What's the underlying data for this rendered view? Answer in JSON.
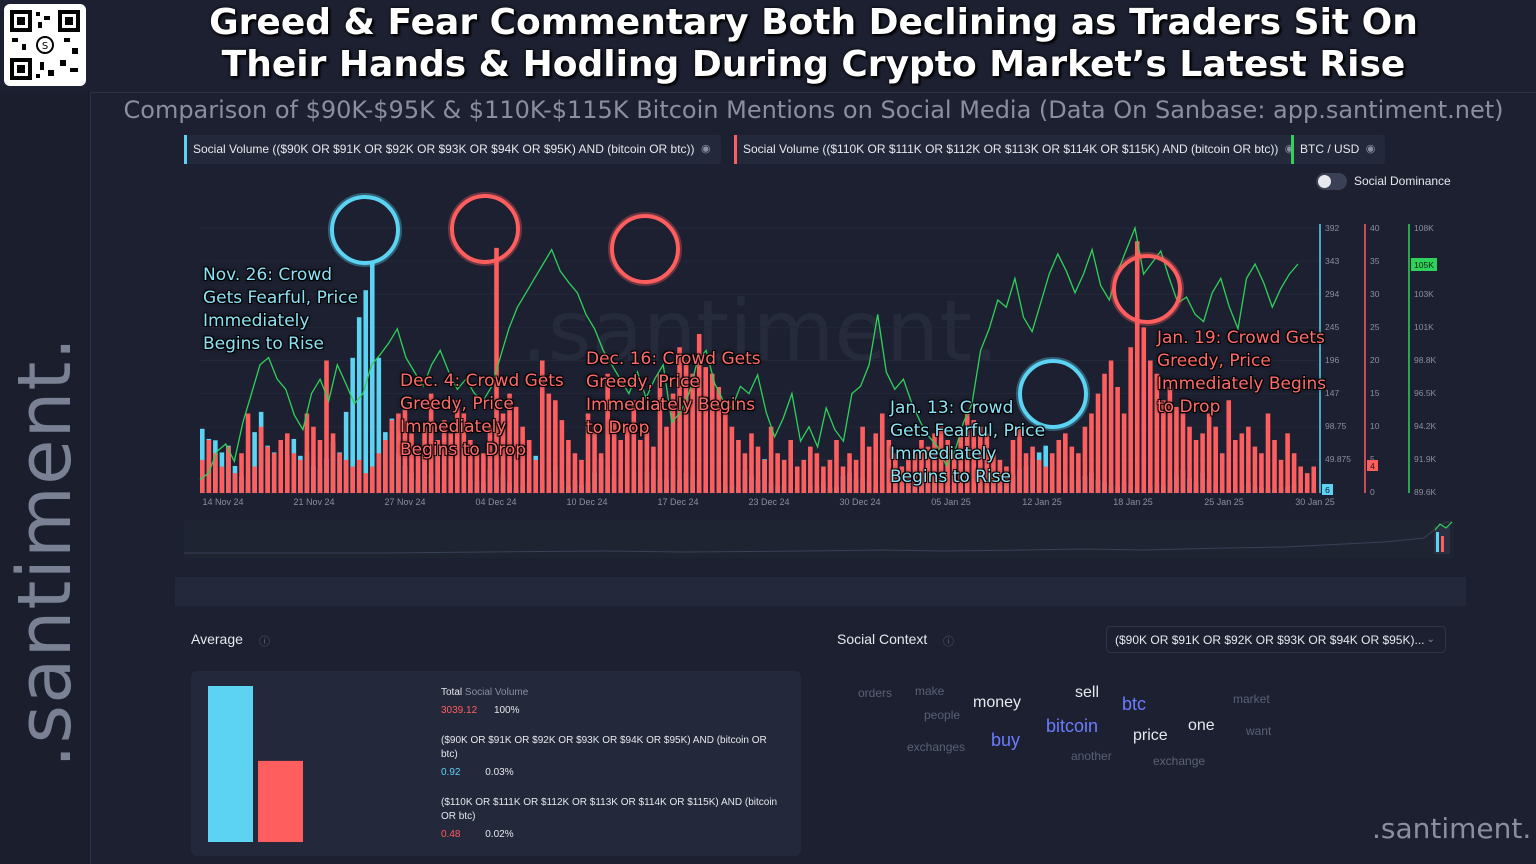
{
  "header": {
    "title_line1": "Greed & Fear Commentary Both Declining as Traders Sit On",
    "title_line2": "Their Hands & Hodling During Crypto Market’s Latest Rise",
    "subtitle": "Comparison of $90K-$95K & $110K-$115K Bitcoin Mentions on Social Media (Data On Sanbase: app.santiment.net)"
  },
  "brand": {
    "rail": ".santiment.",
    "corner": ".santiment.",
    "watermark": ".santiment."
  },
  "legend": [
    {
      "label": "Social Volume (($90K OR $91K OR $92K OR $93K OR $94K OR $95K) AND (bitcoin OR btc))",
      "color": "#5cd3f2"
    },
    {
      "label": "Social Volume (($110K OR $111K OR $112K OR $113K OR $114K OR $115K) AND (bitcoin OR btc))",
      "color": "#ff5e5e"
    },
    {
      "label": "BTC / USD",
      "color": "#2fd15a"
    }
  ],
  "toggle": {
    "label": "Social Dominance",
    "on": false
  },
  "annotations": [
    {
      "text": "Nov. 26: Crowd\nGets Fearful, Price\nImmediately\nBegins to Rise",
      "color": "blue"
    },
    {
      "text": "Dec. 4: Crowd Gets\nGreedy, Price\nImmediately\nBegins to Drop",
      "color": "red"
    },
    {
      "text": "Dec. 16: Crowd Gets\nGreedy, Price\nImmediately Begins\nto Drop",
      "color": "red"
    },
    {
      "text": "Jan. 13: Crowd\nGets Fearful, Price\nImmediately\nBegins to Rise",
      "color": "blue"
    },
    {
      "text": "Jan. 19: Crowd Gets\nGreedy, Price\nImmediately Begins\nto Drop",
      "color": "red"
    }
  ],
  "chart_data": {
    "type": "bar",
    "x_tick_labels": [
      "14 Nov 24",
      "21 Nov 24",
      "27 Nov 24",
      "04 Dec 24",
      "10 Dec 24",
      "17 Dec 24",
      "23 Dec 24",
      "30 Dec 24",
      "05 Jan 25",
      "12 Jan 25",
      "18 Jan 25",
      "25 Jan 25",
      "30 Jan 25"
    ],
    "axes": {
      "blue": {
        "ticks": [
          "392",
          "343",
          "294",
          "245",
          "196",
          "147",
          "98.75",
          "49.875"
        ],
        "ylim": [
          0,
          392
        ],
        "current_label": "6"
      },
      "red": {
        "ticks": [
          "40",
          "35",
          "30",
          "25",
          "20",
          "15",
          "10",
          "5",
          "0"
        ],
        "ylim": [
          0,
          40
        ],
        "current_label": "4"
      },
      "btc": {
        "ticks": [
          "108K",
          "105K",
          "103K",
          "101K",
          "98.8K",
          "96.5K",
          "94.2K",
          "91.9K",
          "89.6K"
        ],
        "ylim": [
          89600,
          108000
        ],
        "current_label": "105K"
      }
    },
    "series": [
      {
        "name": "Social Volume (($90K OR $91K OR $92K OR $93K OR $94K OR $95K) AND (bitcoin OR btc))",
        "axis": "blue",
        "values": [
          95,
          80,
          78,
          60,
          70,
          40,
          25,
          20,
          90,
          120,
          70,
          60,
          40,
          55,
          80,
          55,
          60,
          40,
          35,
          50,
          75,
          60,
          120,
          200,
          260,
          300,
          340,
          200,
          90,
          110,
          60,
          40,
          30,
          20,
          50,
          28,
          60,
          15,
          25,
          60,
          30,
          20,
          18,
          15,
          35,
          20,
          25,
          15,
          8,
          12,
          15,
          55,
          20,
          30,
          40,
          18,
          10,
          20,
          12,
          15,
          30,
          50,
          35,
          25,
          20,
          45,
          30,
          15,
          30,
          35,
          20,
          20,
          35,
          20,
          30,
          25,
          20,
          10,
          8,
          15,
          10,
          12,
          8,
          35,
          25,
          20,
          50,
          15,
          10,
          12,
          10,
          8,
          20,
          12,
          10,
          15,
          8,
          10,
          25,
          30,
          20,
          22,
          18,
          10,
          15,
          12,
          20,
          15,
          18,
          10,
          25,
          28,
          15,
          20,
          10,
          12,
          15,
          20,
          8,
          10,
          10,
          15,
          20,
          30,
          25,
          35,
          40,
          50,
          60,
          70,
          40,
          30,
          22,
          18,
          20,
          25,
          30,
          20,
          15,
          12,
          10,
          15,
          12,
          10,
          8,
          10,
          15,
          12,
          20,
          25,
          35,
          22,
          15,
          30,
          20,
          15,
          10,
          10,
          8,
          12,
          15,
          10,
          8,
          6,
          5,
          8,
          10,
          12,
          6,
          8,
          6
        ]
      },
      {
        "name": "Social Volume (($110K OR $111K OR $112K OR $113K OR $114K OR $115K) AND (bitcoin OR btc))",
        "axis": "red",
        "values": [
          5,
          8,
          6,
          4,
          7,
          3,
          6,
          12,
          4,
          10,
          7,
          6,
          8,
          9,
          6,
          5,
          12,
          10,
          8,
          20,
          9,
          6,
          5,
          4,
          5,
          3,
          4,
          6,
          8,
          11,
          12,
          13,
          9,
          7,
          10,
          15,
          8,
          11,
          9,
          14,
          12,
          8,
          7,
          6,
          10,
          37,
          12,
          15,
          13,
          10,
          8,
          5,
          20,
          15,
          14,
          11,
          8,
          6,
          5,
          12,
          10,
          6,
          18,
          11,
          8,
          10,
          14,
          8,
          10,
          7,
          18,
          10,
          15,
          22,
          20,
          18,
          24,
          19,
          18,
          16,
          12,
          10,
          8,
          6,
          9,
          7,
          5,
          10,
          6,
          5,
          8,
          4,
          5,
          7,
          6,
          4,
          5,
          8,
          4,
          6,
          5,
          10,
          7,
          9,
          12,
          8,
          6,
          4,
          5,
          6,
          8,
          7,
          9,
          10,
          8,
          6,
          10,
          12,
          11,
          10,
          9,
          6,
          5,
          4,
          8,
          10,
          6,
          7,
          5,
          4,
          6,
          8,
          9,
          7,
          6,
          10,
          12,
          15,
          18,
          20,
          16,
          12,
          22,
          38,
          25,
          20,
          18,
          14,
          16,
          13,
          12,
          10,
          8,
          9,
          12,
          10,
          6,
          14,
          8,
          9,
          10,
          7,
          6,
          12,
          8,
          5,
          9,
          6,
          4,
          3,
          4
        ]
      },
      {
        "name": "BTC / USD",
        "axis": "btc",
        "values": [
          90500,
          91000,
          92500,
          93000,
          91800,
          94500,
          96500,
          98500,
          99000,
          97500,
          96800,
          95000,
          94000,
          96500,
          97500,
          96000,
          98500,
          97200,
          95800,
          96500,
          98500,
          99200,
          100000,
          101000,
          99000,
          98000,
          97000,
          98500,
          99500,
          98000,
          96800,
          97500,
          96500,
          96000,
          97000,
          99000,
          101000,
          102500,
          103500,
          104500,
          105500,
          106500,
          105000,
          104200,
          103500,
          102000,
          101000,
          99500,
          98500,
          97500,
          96500,
          98000,
          96200,
          97500,
          98500,
          94500,
          95200,
          96500,
          98800,
          99500,
          97200,
          96000,
          95500,
          97000,
          96500,
          97800,
          95200,
          93500,
          94800,
          96500,
          93200,
          94200,
          92800,
          95500,
          94000,
          93200,
          96500,
          97000,
          98500,
          102000,
          98000,
          96800,
          97500,
          95800,
          94500,
          93500,
          92800,
          91500,
          92500,
          94500,
          95800,
          99500,
          101000,
          103000,
          102500,
          104500,
          101800,
          100800,
          102800,
          104800,
          106200,
          105000,
          103500,
          104800,
          106500,
          104000,
          103000,
          105000,
          106500,
          108000,
          104800,
          105600,
          106400,
          104500,
          102800,
          103200,
          102000,
          101500,
          103500,
          104500,
          102500,
          101000,
          104500,
          105500,
          104200,
          102500,
          103800,
          104800,
          105500
        ]
      }
    ]
  },
  "average": {
    "title": "Average",
    "total_label": "Total",
    "total_suffix": "Social Volume",
    "total_value": "3039.12",
    "total_pct": "100%",
    "rows": [
      {
        "label": "($90K OR $91K OR $92K OR $93K OR $94K OR $95K) AND (bitcoin OR btc)",
        "value": "0.92",
        "pct": "0.03%",
        "color": "#5cd3f2",
        "bar_level": 1.0
      },
      {
        "label": "($110K OR $111K OR $112K OR $113K OR $114K OR $115K) AND (bitcoin OR btc)",
        "value": "0.48",
        "pct": "0.02%",
        "color": "#ff5e5e",
        "bar_level": 0.52
      }
    ]
  },
  "social_context": {
    "title": "Social Context",
    "select_value": "($90K OR $91K OR $92K OR $93K OR $94K OR $95K)...",
    "words": [
      {
        "text": "orders",
        "tone": "dim"
      },
      {
        "text": "make",
        "tone": "dim"
      },
      {
        "text": "people",
        "tone": "dim"
      },
      {
        "text": "money",
        "tone": "bright"
      },
      {
        "text": "sell",
        "tone": "bright"
      },
      {
        "text": "btc",
        "tone": "accent"
      },
      {
        "text": "market",
        "tone": "dim"
      },
      {
        "text": "exchanges",
        "tone": "dim"
      },
      {
        "text": "buy",
        "tone": "accent"
      },
      {
        "text": "bitcoin",
        "tone": "accent"
      },
      {
        "text": "price",
        "tone": "bright"
      },
      {
        "text": "one",
        "tone": "bright"
      },
      {
        "text": "want",
        "tone": "dim"
      },
      {
        "text": "another",
        "tone": "dim"
      },
      {
        "text": "exchange",
        "tone": "dim"
      }
    ]
  },
  "colors": {
    "blue": "#5cd3f2",
    "red": "#ff5e5e",
    "green": "#2fd15a",
    "accent_word": "#6b7dff"
  }
}
